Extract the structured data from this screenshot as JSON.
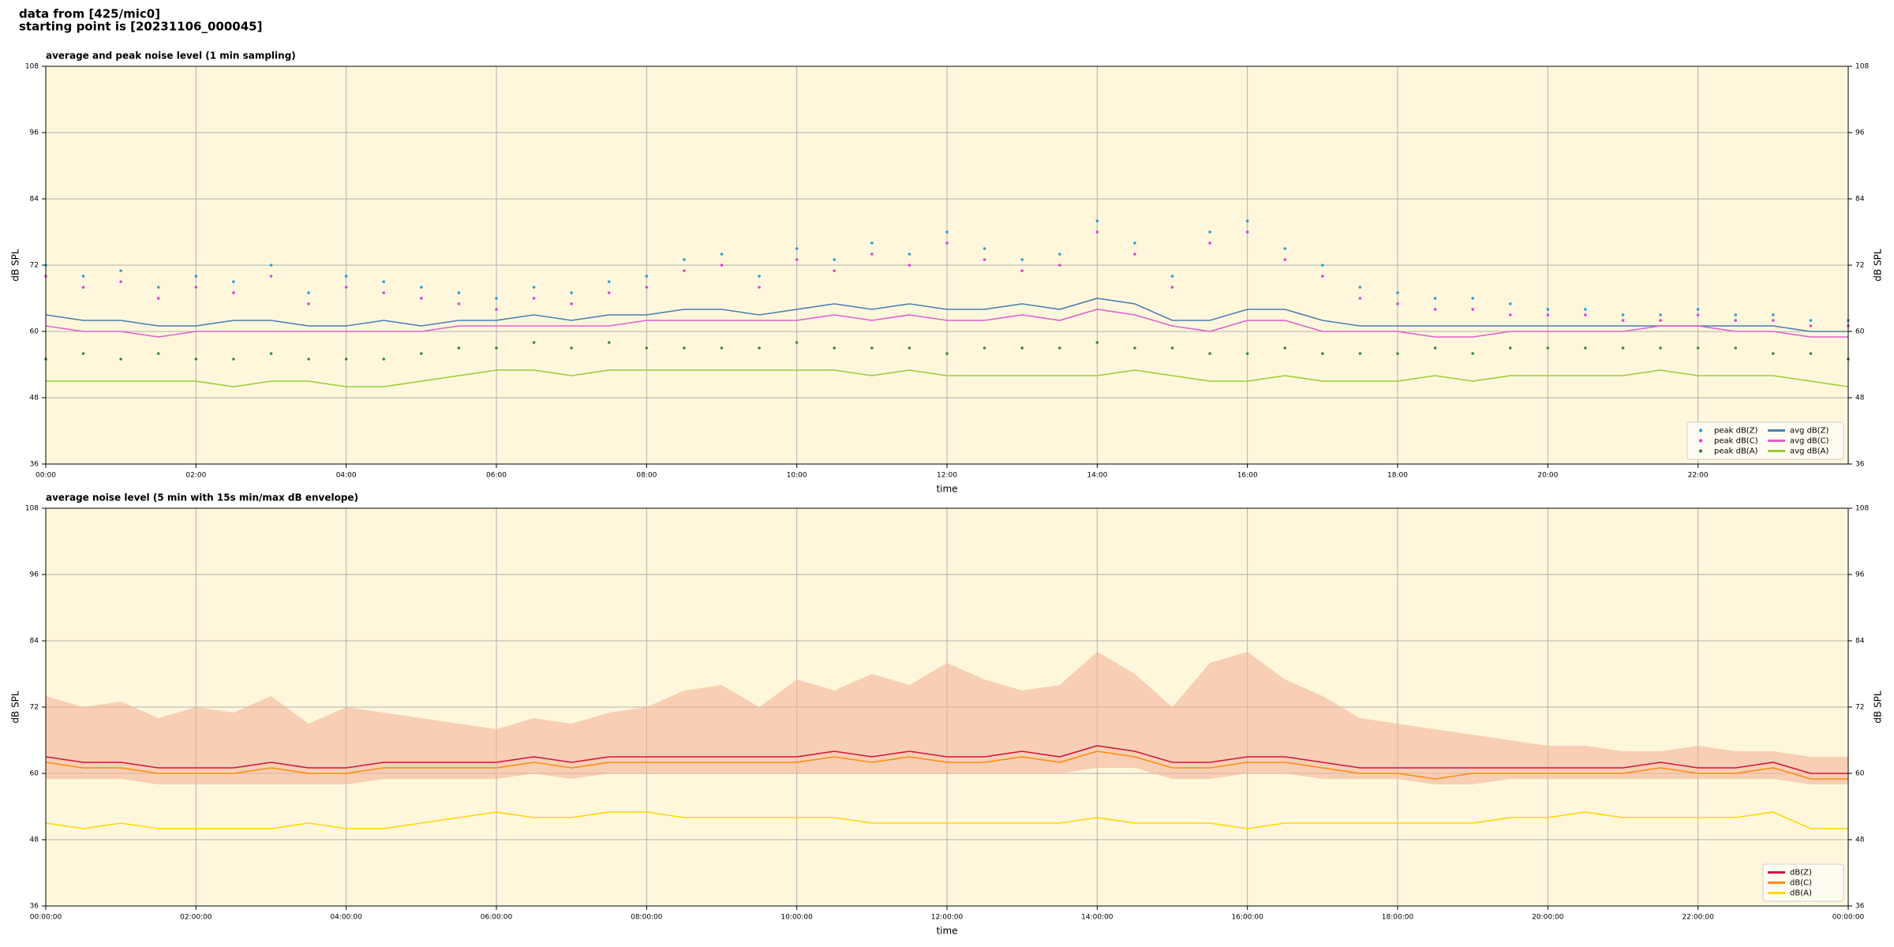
{
  "suptitle": [
    "data from [425/mic0]",
    "starting point is [20231106_000045]"
  ],
  "chart_data": [
    {
      "type": "line",
      "title": "average and peak noise level (1 min sampling)",
      "x_label": "time",
      "y_label": "dB SPL",
      "facecolor": "#fff7dc",
      "grid": true,
      "legend": "lower right",
      "legend_columns": 2,
      "xlim": [
        0,
        24
      ],
      "ylim": [
        36,
        108
      ],
      "yticks": [
        36,
        48,
        60,
        72,
        84,
        96,
        108
      ],
      "xticks": [
        {
          "value": 0,
          "label": "00:00"
        },
        {
          "value": 2,
          "label": "02:00"
        },
        {
          "value": 4,
          "label": "04:00"
        },
        {
          "value": 6,
          "label": "06:00"
        },
        {
          "value": 8,
          "label": "08:00"
        },
        {
          "value": 10,
          "label": "10:00"
        },
        {
          "value": 12,
          "label": "12:00"
        },
        {
          "value": 14,
          "label": "14:00"
        },
        {
          "value": 16,
          "label": "16:00"
        },
        {
          "value": 18,
          "label": "18:00"
        },
        {
          "value": 20,
          "label": "20:00"
        },
        {
          "value": 22,
          "label": "22:00"
        }
      ],
      "x": [
        0,
        0.5,
        1,
        1.5,
        2,
        2.5,
        3,
        3.5,
        4,
        4.5,
        5,
        5.5,
        6,
        6.5,
        7,
        7.5,
        8,
        8.5,
        9,
        9.5,
        10,
        10.5,
        11,
        11.5,
        12,
        12.5,
        13,
        13.5,
        14,
        14.5,
        15,
        15.5,
        16,
        16.5,
        17,
        17.5,
        18,
        18.5,
        19,
        19.5,
        20,
        20.5,
        21,
        21.5,
        22,
        22.5,
        23,
        23.5,
        24
      ],
      "series": [
        {
          "name": "peak dB(Z)",
          "color": "#2a9fd8",
          "mode": "markers",
          "values": [
            72,
            70,
            71,
            68,
            70,
            69,
            72,
            67,
            70,
            69,
            68,
            67,
            66,
            68,
            67,
            69,
            70,
            73,
            74,
            70,
            75,
            73,
            76,
            74,
            78,
            75,
            73,
            74,
            80,
            76,
            70,
            78,
            80,
            75,
            72,
            68,
            67,
            66,
            66,
            65,
            64,
            64,
            63,
            63,
            64,
            63,
            63,
            62,
            62
          ]
        },
        {
          "name": "peak dB(C)",
          "color": "#e040d8",
          "mode": "markers",
          "values": [
            70,
            68,
            69,
            66,
            68,
            67,
            70,
            65,
            68,
            67,
            66,
            65,
            64,
            66,
            65,
            67,
            68,
            71,
            72,
            68,
            73,
            71,
            74,
            72,
            76,
            73,
            71,
            72,
            78,
            74,
            68,
            76,
            78,
            73,
            70,
            66,
            65,
            64,
            64,
            63,
            63,
            63,
            62,
            62,
            63,
            62,
            62,
            61,
            61
          ]
        },
        {
          "name": "peak dB(A)",
          "color": "#3a8a3a",
          "mode": "markers",
          "values": [
            55,
            56,
            55,
            56,
            55,
            55,
            56,
            55,
            55,
            55,
            56,
            57,
            57,
            58,
            57,
            58,
            57,
            57,
            57,
            57,
            58,
            57,
            57,
            57,
            56,
            57,
            57,
            57,
            58,
            57,
            57,
            56,
            56,
            57,
            56,
            56,
            56,
            57,
            56,
            57,
            57,
            57,
            57,
            57,
            57,
            57,
            56,
            56,
            55
          ]
        },
        {
          "name": "avg dB(Z)",
          "color": "#4a7fb0",
          "mode": "lines",
          "values": [
            63,
            62,
            62,
            61,
            61,
            62,
            62,
            61,
            61,
            62,
            61,
            62,
            62,
            63,
            62,
            63,
            63,
            64,
            64,
            63,
            64,
            65,
            64,
            65,
            64,
            64,
            65,
            64,
            66,
            65,
            62,
            62,
            64,
            64,
            62,
            61,
            61,
            61,
            61,
            61,
            61,
            61,
            61,
            61,
            61,
            61,
            61,
            60,
            60
          ]
        },
        {
          "name": "avg dB(C)",
          "color": "#e060d0",
          "mode": "lines",
          "values": [
            61,
            60,
            60,
            59,
            60,
            60,
            60,
            60,
            60,
            60,
            60,
            61,
            61,
            61,
            61,
            61,
            62,
            62,
            62,
            62,
            62,
            63,
            62,
            63,
            62,
            62,
            63,
            62,
            64,
            63,
            61,
            60,
            62,
            62,
            60,
            60,
            60,
            59,
            59,
            60,
            60,
            60,
            60,
            61,
            61,
            60,
            60,
            59,
            59
          ]
        },
        {
          "name": "avg dB(A)",
          "color": "#9acd32",
          "mode": "lines",
          "values": [
            51,
            51,
            51,
            51,
            51,
            50,
            51,
            51,
            50,
            50,
            51,
            52,
            53,
            53,
            52,
            53,
            53,
            53,
            53,
            53,
            53,
            53,
            52,
            53,
            52,
            52,
            52,
            52,
            52,
            53,
            52,
            51,
            51,
            52,
            51,
            51,
            51,
            52,
            51,
            52,
            52,
            52,
            52,
            53,
            52,
            52,
            52,
            51,
            50
          ]
        }
      ]
    },
    {
      "type": "line",
      "title": "average noise level (5 min with 15s min/max dB envelope)",
      "x_label": "time",
      "y_label": "dB SPL",
      "facecolor": "#fff7dc",
      "grid": true,
      "legend": "lower right",
      "legend_columns": 1,
      "xlim": [
        0,
        24
      ],
      "ylim": [
        36,
        108
      ],
      "yticks": [
        36,
        48,
        60,
        72,
        84,
        96,
        108
      ],
      "xticks": [
        {
          "value": 0,
          "label": "00:00:00"
        },
        {
          "value": 2,
          "label": "02:00:00"
        },
        {
          "value": 4,
          "label": "04:00:00"
        },
        {
          "value": 6,
          "label": "06:00:00"
        },
        {
          "value": 8,
          "label": "08:00:00"
        },
        {
          "value": 10,
          "label": "10:00:00"
        },
        {
          "value": 12,
          "label": "12:00:00"
        },
        {
          "value": 14,
          "label": "14:00:00"
        },
        {
          "value": 16,
          "label": "16:00:00"
        },
        {
          "value": 18,
          "label": "18:00:00"
        },
        {
          "value": 20,
          "label": "20:00:00"
        },
        {
          "value": 22,
          "label": "22:00:00"
        },
        {
          "value": 24,
          "label": "00:00:00"
        }
      ],
      "x": [
        0,
        0.5,
        1,
        1.5,
        2,
        2.5,
        3,
        3.5,
        4,
        4.5,
        5,
        5.5,
        6,
        6.5,
        7,
        7.5,
        8,
        8.5,
        9,
        9.5,
        10,
        10.5,
        11,
        11.5,
        12,
        12.5,
        13,
        13.5,
        14,
        14.5,
        15,
        15.5,
        16,
        16.5,
        17,
        17.5,
        18,
        18.5,
        19,
        19.5,
        20,
        20.5,
        21,
        21.5,
        22,
        22.5,
        23,
        23.5,
        24
      ],
      "envelope": {
        "color": "#f4b49a",
        "upper": [
          74,
          72,
          73,
          70,
          72,
          71,
          74,
          69,
          72,
          71,
          70,
          69,
          68,
          70,
          69,
          71,
          72,
          75,
          76,
          72,
          77,
          75,
          78,
          76,
          80,
          77,
          75,
          76,
          82,
          78,
          72,
          80,
          82,
          77,
          74,
          70,
          69,
          68,
          67,
          66,
          65,
          65,
          64,
          64,
          65,
          64,
          64,
          63,
          63
        ],
        "lower": [
          59,
          59,
          59,
          58,
          58,
          58,
          58,
          58,
          58,
          59,
          59,
          59,
          59,
          60,
          59,
          60,
          60,
          60,
          60,
          60,
          60,
          60,
          60,
          60,
          60,
          60,
          60,
          60,
          61,
          61,
          59,
          59,
          60,
          60,
          59,
          59,
          59,
          58,
          58,
          59,
          59,
          59,
          59,
          59,
          59,
          59,
          59,
          58,
          58
        ]
      },
      "series": [
        {
          "name": "dB(Z)",
          "color": "#d01540",
          "mode": "lines",
          "values": [
            63,
            62,
            62,
            61,
            61,
            61,
            62,
            61,
            61,
            62,
            62,
            62,
            62,
            63,
            62,
            63,
            63,
            63,
            63,
            63,
            63,
            64,
            63,
            64,
            63,
            63,
            64,
            63,
            65,
            64,
            62,
            62,
            63,
            63,
            62,
            61,
            61,
            61,
            61,
            61,
            61,
            61,
            61,
            62,
            61,
            61,
            62,
            60,
            60
          ]
        },
        {
          "name": "dB(C)",
          "color": "#ff8c10",
          "mode": "lines",
          "values": [
            62,
            61,
            61,
            60,
            60,
            60,
            61,
            60,
            60,
            61,
            61,
            61,
            61,
            62,
            61,
            62,
            62,
            62,
            62,
            62,
            62,
            63,
            62,
            63,
            62,
            62,
            63,
            62,
            64,
            63,
            61,
            61,
            62,
            62,
            61,
            60,
            60,
            59,
            60,
            60,
            60,
            60,
            60,
            61,
            60,
            60,
            61,
            59,
            59
          ]
        },
        {
          "name": "dB(A)",
          "color": "#ffd700",
          "mode": "lines",
          "values": [
            51,
            50,
            51,
            50,
            50,
            50,
            50,
            51,
            50,
            50,
            51,
            52,
            53,
            52,
            52,
            53,
            53,
            52,
            52,
            52,
            52,
            52,
            51,
            51,
            51,
            51,
            51,
            51,
            52,
            51,
            51,
            51,
            50,
            51,
            51,
            51,
            51,
            51,
            51,
            52,
            52,
            53,
            52,
            52,
            52,
            52,
            53,
            50,
            50
          ]
        }
      ]
    }
  ]
}
